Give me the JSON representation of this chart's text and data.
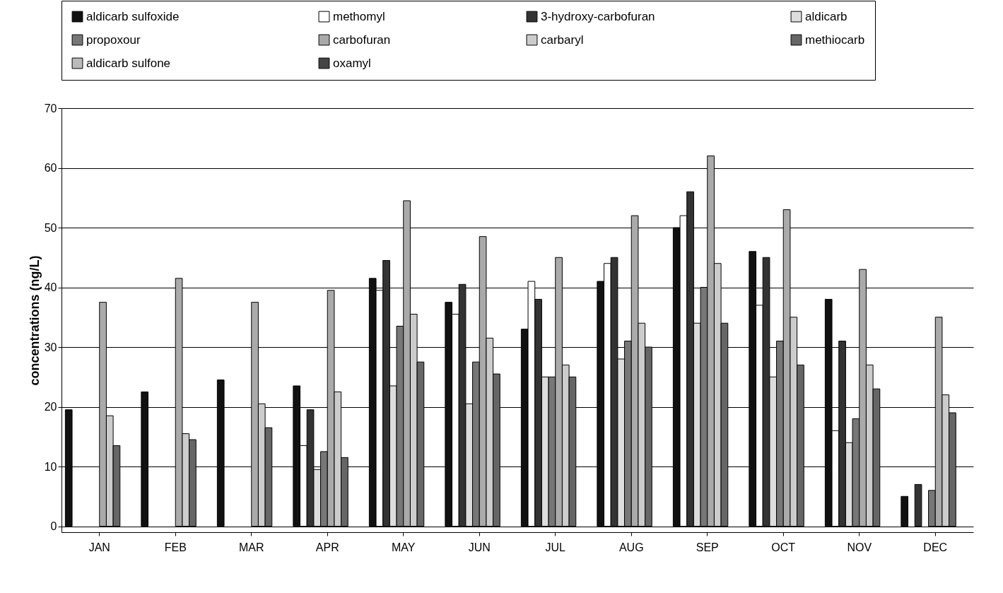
{
  "chart_data": {
    "type": "bar",
    "ylabel": "concentrations (ng/L)",
    "categories": [
      "JAN",
      "FEB",
      "MAR",
      "APR",
      "MAY",
      "JUN",
      "JUL",
      "AUG",
      "SEP",
      "OCT",
      "NOV",
      "DEC"
    ],
    "series": [
      {
        "name": "aldicarb  sulfoxide",
        "color": "#111111",
        "values": [
          19.5,
          22.5,
          24.5,
          23.5,
          41.5,
          37.5,
          33,
          41,
          50,
          46,
          38,
          5
        ]
      },
      {
        "name": "methomyl",
        "color": "#ffffff",
        "values": [
          0,
          0,
          0,
          13.5,
          39.5,
          35.5,
          41,
          44,
          52,
          37,
          16,
          0
        ]
      },
      {
        "name": "3-hydroxy-carbofuran",
        "color": "#333333",
        "values": [
          0,
          0,
          0,
          19.5,
          44.5,
          40.5,
          38,
          45,
          56,
          45,
          31,
          7
        ]
      },
      {
        "name": "aldicarb",
        "color": "#dddddd",
        "values": [
          0,
          0,
          0,
          9.5,
          23.5,
          20.5,
          25,
          28,
          34,
          25,
          14,
          0
        ]
      },
      {
        "name": "propoxour",
        "color": "#777777",
        "values": [
          0,
          0,
          0,
          12.5,
          33.5,
          27.5,
          25,
          31,
          40,
          31,
          18,
          6
        ]
      },
      {
        "name": "carbofuran",
        "color": "#aaaaaa",
        "values": [
          37.5,
          41.5,
          37.5,
          39.5,
          54.5,
          48.5,
          45,
          52,
          62,
          53,
          43,
          35
        ]
      },
      {
        "name": "carbaryl",
        "color": "#cccccc",
        "values": [
          18.5,
          15.5,
          20.5,
          22.5,
          35.5,
          31.5,
          27,
          34,
          44,
          35,
          27,
          22
        ]
      },
      {
        "name": "methiocarb",
        "color": "#666666",
        "values": [
          13.5,
          14.5,
          16.5,
          11.5,
          27.5,
          25.5,
          25,
          30,
          34,
          27,
          23,
          19
        ]
      },
      {
        "name": "aldicarb sulfone",
        "color": "#bbbbbb",
        "values": [
          0,
          0,
          0,
          0,
          0,
          0,
          0,
          0,
          0,
          0,
          0,
          0
        ]
      },
      {
        "name": "oxamyl",
        "color": "#444444",
        "values": [
          0,
          0,
          0,
          0,
          0,
          0,
          0,
          0,
          0,
          0,
          0,
          0
        ]
      }
    ],
    "ylim": [
      -1,
      70
    ],
    "yticks": [
      0,
      10,
      20,
      30,
      40,
      50,
      60,
      70
    ],
    "grid": "y",
    "legend": "top"
  }
}
